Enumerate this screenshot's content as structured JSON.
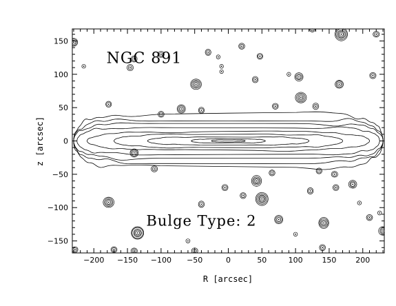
{
  "chart_data": {
    "type": "contour",
    "xlabel": "R [arcsec]",
    "ylabel": "z [arcsec]",
    "xlim": [
      -232,
      232
    ],
    "ylim": [
      -168,
      168
    ],
    "xticks": [
      -200,
      -150,
      -100,
      -50,
      0,
      50,
      100,
      150,
      200
    ],
    "xtick_labels": [
      "−200",
      "−150",
      "−100",
      "−50",
      "0",
      "50",
      "100",
      "150",
      "200"
    ],
    "yticks": [
      -150,
      -100,
      -50,
      0,
      50,
      100,
      150
    ],
    "ytick_labels": [
      "−150",
      "−100",
      "−50",
      "0",
      "50",
      "100",
      "150"
    ],
    "grid": false,
    "annotations": [
      {
        "text": "NGC 891",
        "x": -125,
        "y": 125
      },
      {
        "text": "Bulge Type: 2",
        "x": -40,
        "y": -120
      }
    ],
    "disk_isophotes": [
      {
        "a": 230,
        "b": 40
      },
      {
        "a": 230,
        "b": 32
      },
      {
        "a": 230,
        "b": 26
      },
      {
        "a": 225,
        "b": 20
      },
      {
        "a": 210,
        "b": 14
      },
      {
        "a": 170,
        "b": 10
      },
      {
        "a": 120,
        "b": 6
      },
      {
        "a": 55,
        "b": 3
      },
      {
        "a": 25,
        "b": 1.5
      }
    ],
    "sources": [
      {
        "x": -230,
        "y": 148,
        "n": 3
      },
      {
        "x": -215,
        "y": 112,
        "n": 1
      },
      {
        "x": -140,
        "y": 123,
        "n": 2
      },
      {
        "x": -146,
        "y": 110,
        "n": 2
      },
      {
        "x": -100,
        "y": 130,
        "n": 2
      },
      {
        "x": -30,
        "y": 133,
        "n": 2
      },
      {
        "x": -15,
        "y": 126,
        "n": 1
      },
      {
        "x": 20,
        "y": 142,
        "n": 2
      },
      {
        "x": 47,
        "y": 127,
        "n": 2
      },
      {
        "x": -10,
        "y": 112,
        "n": 1
      },
      {
        "x": -10,
        "y": 104,
        "n": 1
      },
      {
        "x": 40,
        "y": 92,
        "n": 2
      },
      {
        "x": 90,
        "y": 100,
        "n": 1
      },
      {
        "x": 105,
        "y": 96,
        "n": 3
      },
      {
        "x": 125,
        "y": 168,
        "n": 2
      },
      {
        "x": 168,
        "y": 160,
        "n": 5
      },
      {
        "x": 165,
        "y": 85,
        "n": 3
      },
      {
        "x": 215,
        "y": 98,
        "n": 2
      },
      {
        "x": 220,
        "y": 160,
        "n": 2
      },
      {
        "x": -48,
        "y": 85,
        "n": 4
      },
      {
        "x": 108,
        "y": 65,
        "n": 4
      },
      {
        "x": -178,
        "y": 55,
        "n": 2
      },
      {
        "x": -70,
        "y": 48,
        "n": 3
      },
      {
        "x": -40,
        "y": 46,
        "n": 2
      },
      {
        "x": -100,
        "y": 40,
        "n": 2
      },
      {
        "x": 70,
        "y": 52,
        "n": 2
      },
      {
        "x": 130,
        "y": 52,
        "n": 2
      },
      {
        "x": -140,
        "y": -18,
        "n": 3
      },
      {
        "x": -110,
        "y": -42,
        "n": 2
      },
      {
        "x": 42,
        "y": -60,
        "n": 4
      },
      {
        "x": 65,
        "y": -48,
        "n": 2
      },
      {
        "x": 135,
        "y": -45,
        "n": 2
      },
      {
        "x": 158,
        "y": -50,
        "n": 2
      },
      {
        "x": -178,
        "y": -92,
        "n": 4
      },
      {
        "x": -5,
        "y": -70,
        "n": 2
      },
      {
        "x": 50,
        "y": -87,
        "n": 5
      },
      {
        "x": 22,
        "y": -82,
        "n": 2
      },
      {
        "x": -40,
        "y": -95,
        "n": 2
      },
      {
        "x": 122,
        "y": -75,
        "n": 2
      },
      {
        "x": 160,
        "y": -70,
        "n": 2
      },
      {
        "x": 185,
        "y": -65,
        "n": 3
      },
      {
        "x": 195,
        "y": -93,
        "n": 1
      },
      {
        "x": 75,
        "y": -118,
        "n": 3
      },
      {
        "x": 142,
        "y": -123,
        "n": 4
      },
      {
        "x": 210,
        "y": -115,
        "n": 2
      },
      {
        "x": 225,
        "y": -108,
        "n": 1
      },
      {
        "x": -135,
        "y": -138,
        "n": 5
      },
      {
        "x": -60,
        "y": -150,
        "n": 1
      },
      {
        "x": 230,
        "y": -135,
        "n": 3
      },
      {
        "x": -228,
        "y": -163,
        "n": 2
      },
      {
        "x": -170,
        "y": -163,
        "n": 2
      },
      {
        "x": -140,
        "y": -165,
        "n": 2
      },
      {
        "x": -50,
        "y": -165,
        "n": 2
      },
      {
        "x": 100,
        "y": -140,
        "n": 1
      },
      {
        "x": 140,
        "y": -160,
        "n": 2
      }
    ]
  }
}
